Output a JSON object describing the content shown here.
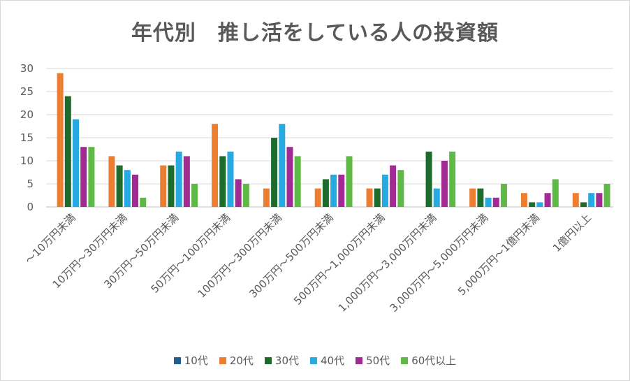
{
  "chart_data": {
    "type": "bar",
    "title": "年代別　推し活をしている人の投資額",
    "categories": [
      "～10万円未満",
      "10万円～30万円未満",
      "30万円～50万円未満",
      "50万円～100万円未満",
      "100万円～300万円未満",
      "300万円～500万円未満",
      "500万円～1,000万円未満",
      "1,000万円～3,000万円未満",
      "3,000万円～5,000万円未満",
      "5,000万円～1億円未満",
      "1億円以上"
    ],
    "series": [
      {
        "name": "10代",
        "color": "#1f5f8b",
        "values": [
          0,
          0,
          0,
          0,
          0,
          0,
          0,
          0,
          0,
          0,
          0
        ]
      },
      {
        "name": "20代",
        "color": "#ed7d31",
        "values": [
          29,
          11,
          9,
          18,
          4,
          4,
          4,
          0,
          4,
          3,
          3
        ]
      },
      {
        "name": "30代",
        "color": "#1e6b2e",
        "values": [
          24,
          9,
          9,
          11,
          15,
          6,
          4,
          12,
          4,
          1,
          1
        ]
      },
      {
        "name": "40代",
        "color": "#27a9e1",
        "values": [
          19,
          8,
          12,
          12,
          18,
          7,
          7,
          4,
          2,
          1,
          3
        ]
      },
      {
        "name": "50代",
        "color": "#a02b93",
        "values": [
          13,
          7,
          11,
          6,
          13,
          7,
          9,
          10,
          2,
          3,
          3
        ]
      },
      {
        "name": "60代以上",
        "color": "#5fb946",
        "values": [
          13,
          2,
          5,
          5,
          11,
          11,
          8,
          12,
          5,
          6,
          5
        ]
      }
    ],
    "yticks": [
      0,
      5,
      10,
      15,
      20,
      25,
      30
    ],
    "ylim": [
      0,
      30
    ],
    "grid": true,
    "legend_position": "bottom"
  }
}
